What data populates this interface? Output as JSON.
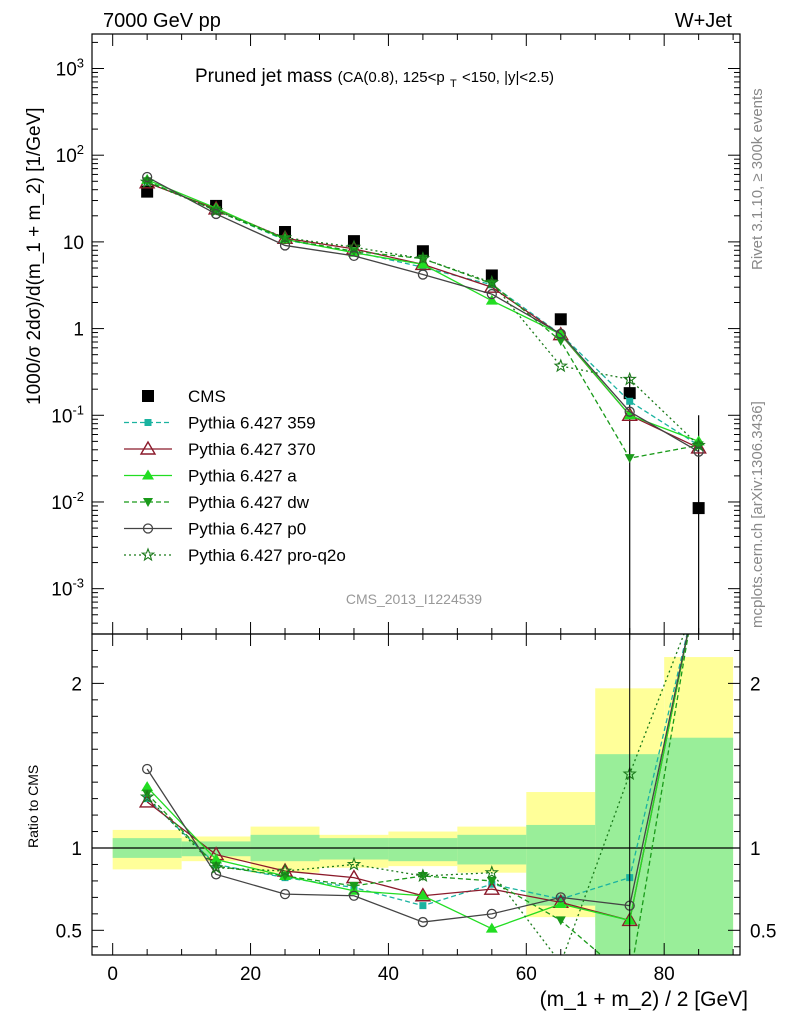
{
  "header": {
    "left": "7000 GeV pp",
    "right": "W+Jet"
  },
  "plot_title": {
    "main": "Pruned jet mass",
    "sub_prefix": "(CA(0.8), 125<p",
    "sub_subscript": "T",
    "sub_suffix": "<150, |y|<2.5)"
  },
  "side_labels": {
    "rivet": "Rivet 3.1.10, ≥ 300k events",
    "mcplots": "mcplots.cern.ch [arXiv:1306.3436]"
  },
  "analysis_id": "CMS_2013_I1224539",
  "chart_data": [
    {
      "type": "line",
      "panel": "main",
      "ylabel": "1000/σ 2dσ)/d(m_1 + m_2) [1/GeV]",
      "yscale": "log",
      "ylim": [
        0.0003,
        2500
      ],
      "xlim": [
        -3,
        91
      ],
      "y_tick_labels": [
        "10^-3",
        "10^-2",
        "10^-1",
        "1",
        "10",
        "10^2",
        "10^3"
      ],
      "x": [
        5,
        15,
        25,
        35,
        45,
        55,
        65,
        75,
        85
      ],
      "bin_edges": [
        0,
        10,
        20,
        30,
        40,
        50,
        60,
        70,
        80,
        90
      ],
      "legend_position": "middle-left",
      "series": [
        {
          "name": "CMS",
          "color": "#000000",
          "marker": "square",
          "dash": "none",
          "values": [
            38,
            26,
            13,
            10.2,
            7.8,
            4.1,
            1.28,
            0.18,
            0.0085
          ]
        },
        {
          "name": "Pythia 6.427 359",
          "color": "#1bb3a0",
          "marker": "small-square",
          "dash": "5,3",
          "values": [
            50,
            23,
            10.5,
            7.7,
            5.1,
            3.2,
            0.86,
            0.145,
            0.045
          ]
        },
        {
          "name": "Pythia 6.427 370",
          "color": "#8b1a2b",
          "marker": "open-triangle",
          "dash": "none",
          "values": [
            48,
            24,
            11,
            8.3,
            5.5,
            3.0,
            0.85,
            0.1,
            0.042
          ]
        },
        {
          "name": "Pythia 6.427 a",
          "color": "#22dd22",
          "marker": "triangle",
          "dash": "none",
          "values": [
            52,
            24.5,
            10.7,
            7.5,
            5.5,
            2.1,
            0.86,
            0.1,
            0.05
          ]
        },
        {
          "name": "Pythia 6.427 dw",
          "color": "#1a9a1a",
          "marker": "down-triangle",
          "dash": "5,3",
          "values": [
            50,
            23,
            10.7,
            7.8,
            6.4,
            3.3,
            0.72,
            0.032,
            0.045
          ]
        },
        {
          "name": "Pythia 6.427 p0",
          "color": "#444444",
          "marker": "open-circle",
          "dash": "none",
          "values": [
            56,
            21,
            9.1,
            6.9,
            4.2,
            2.5,
            0.87,
            0.11,
            0.038
          ]
        },
        {
          "name": "Pythia 6.427 pro-q2o",
          "color": "#1b7a1b",
          "marker": "star",
          "dash": "2,3",
          "values": [
            49,
            23,
            11.2,
            8.7,
            6.4,
            3.4,
            0.37,
            0.26,
            0.045
          ]
        }
      ]
    },
    {
      "type": "line",
      "panel": "ratio",
      "ylabel": "Ratio to CMS",
      "xlabel": "(m_1 + m_2) / 2 [GeV]",
      "ylim": [
        0.35,
        2.3
      ],
      "xlim": [
        -3,
        91
      ],
      "x": [
        5,
        15,
        25,
        35,
        45,
        55,
        65,
        75
      ],
      "y_ticks": [
        0.5,
        1,
        2
      ],
      "x_ticks": [
        0,
        20,
        40,
        60,
        80
      ],
      "bands": {
        "bin_edges": [
          0,
          10,
          20,
          30,
          40,
          50,
          60,
          70,
          80,
          90
        ],
        "inner": [
          [
            0.94,
            1.06
          ],
          [
            0.95,
            1.04
          ],
          [
            0.92,
            1.08
          ],
          [
            0.93,
            1.06
          ],
          [
            0.92,
            1.06
          ],
          [
            0.9,
            1.08
          ],
          [
            0.65,
            1.14
          ],
          [
            0.06,
            1.57
          ],
          [
            0.05,
            1.67
          ]
        ],
        "outer": [
          [
            0.87,
            1.11
          ],
          [
            0.92,
            1.07
          ],
          [
            0.85,
            1.13
          ],
          [
            0.88,
            1.08
          ],
          [
            0.89,
            1.1
          ],
          [
            0.85,
            1.13
          ],
          [
            0.58,
            1.34
          ],
          [
            0.53,
            1.97
          ],
          [
            0.05,
            2.16
          ]
        ]
      },
      "series": [
        {
          "name": "Pythia 6.427 359",
          "values": [
            1.3,
            0.9,
            0.82,
            0.76,
            0.65,
            0.78,
            0.69,
            0.82
          ]
        },
        {
          "name": "Pythia 6.427 370",
          "values": [
            1.28,
            0.96,
            0.86,
            0.82,
            0.71,
            0.75,
            0.67,
            0.56
          ]
        },
        {
          "name": "Pythia 6.427 a",
          "values": [
            1.37,
            0.93,
            0.83,
            0.74,
            0.71,
            0.51,
            0.66,
            0.56
          ]
        },
        {
          "name": "Pythia 6.427 dw",
          "values": [
            1.33,
            0.89,
            0.83,
            0.77,
            0.83,
            0.8,
            0.56,
            0.2
          ]
        },
        {
          "name": "Pythia 6.427 p0",
          "values": [
            1.48,
            0.84,
            0.72,
            0.71,
            0.55,
            0.6,
            0.7,
            0.65
          ]
        },
        {
          "name": "Pythia 6.427 pro-q2o",
          "values": [
            1.31,
            0.88,
            0.86,
            0.9,
            0.83,
            0.85,
            0.3,
            1.45
          ]
        }
      ]
    }
  ]
}
